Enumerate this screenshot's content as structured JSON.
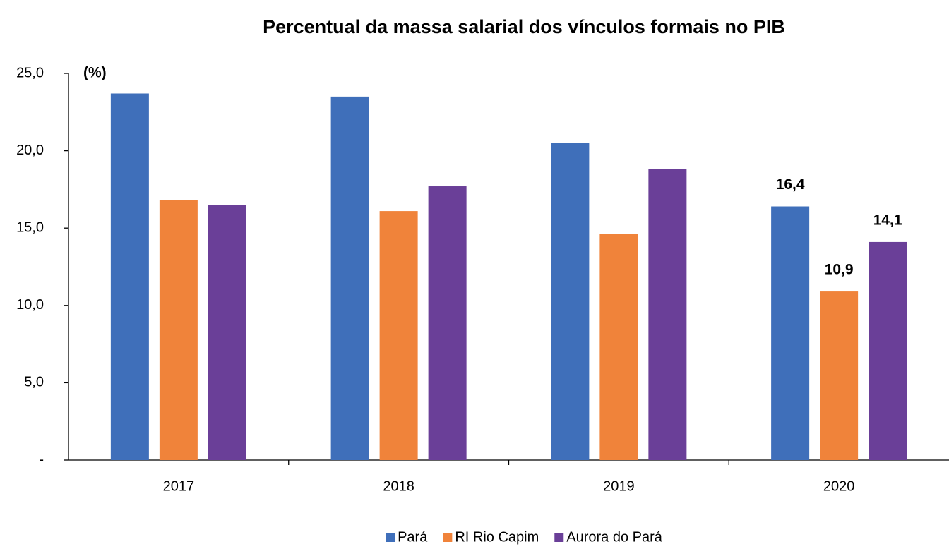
{
  "chart_data": {
    "type": "bar",
    "title": "Percentual da massa salarial dos vínculos formais no PIB",
    "y_unit_label": "(%)",
    "categories": [
      "2017",
      "2018",
      "2019",
      "2020"
    ],
    "series": [
      {
        "name": "Pará",
        "color": "#3f6fba",
        "values": [
          23.7,
          23.5,
          20.5,
          16.4
        ],
        "value_labels": [
          null,
          null,
          null,
          "16,4"
        ]
      },
      {
        "name": "RI Rio Capim",
        "color": "#f0833a",
        "values": [
          16.8,
          16.1,
          14.6,
          10.9
        ],
        "value_labels": [
          null,
          null,
          null,
          "10,9"
        ]
      },
      {
        "name": "Aurora do Pará",
        "color": "#6a3f98",
        "values": [
          16.5,
          17.7,
          18.8,
          14.1
        ],
        "value_labels": [
          null,
          null,
          null,
          "14,1"
        ]
      }
    ],
    "ylim": [
      0,
      25
    ],
    "yticks": [
      {
        "value": 0,
        "label": "-"
      },
      {
        "value": 5,
        "label": "5,0"
      },
      {
        "value": 10,
        "label": "10,0"
      },
      {
        "value": 15,
        "label": "15,0"
      },
      {
        "value": 20,
        "label": "20,0"
      },
      {
        "value": 25,
        "label": "25,0"
      }
    ],
    "grid": false,
    "legend": "bottom"
  }
}
